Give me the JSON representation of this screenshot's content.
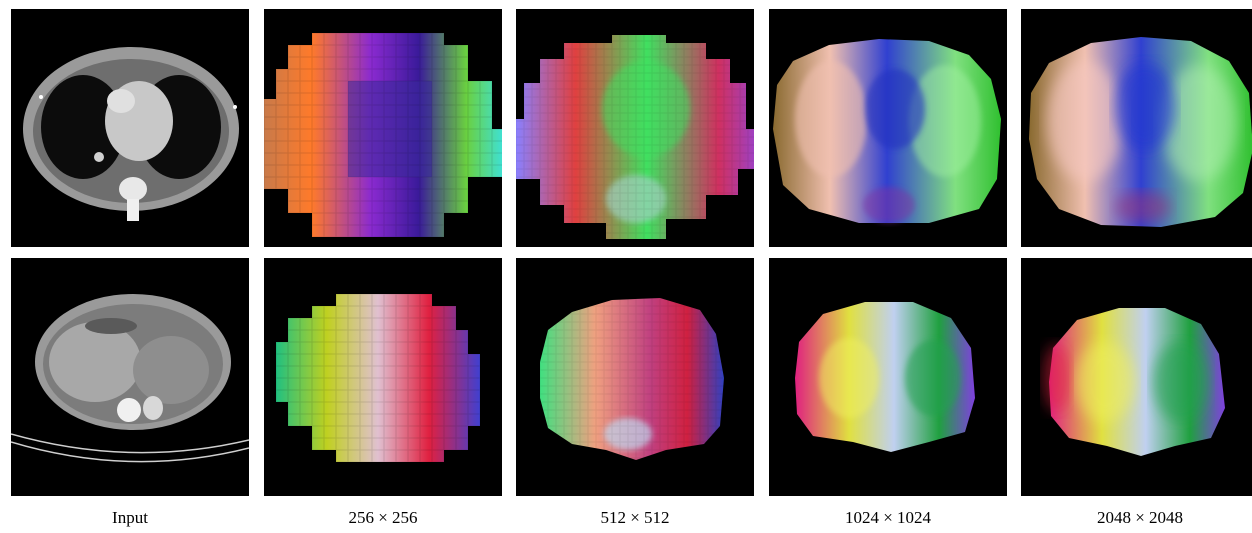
{
  "figure": {
    "captions": [
      "Input",
      "256 × 256",
      "512 × 512",
      "1024 × 1024",
      "2048 × 2048"
    ]
  }
}
